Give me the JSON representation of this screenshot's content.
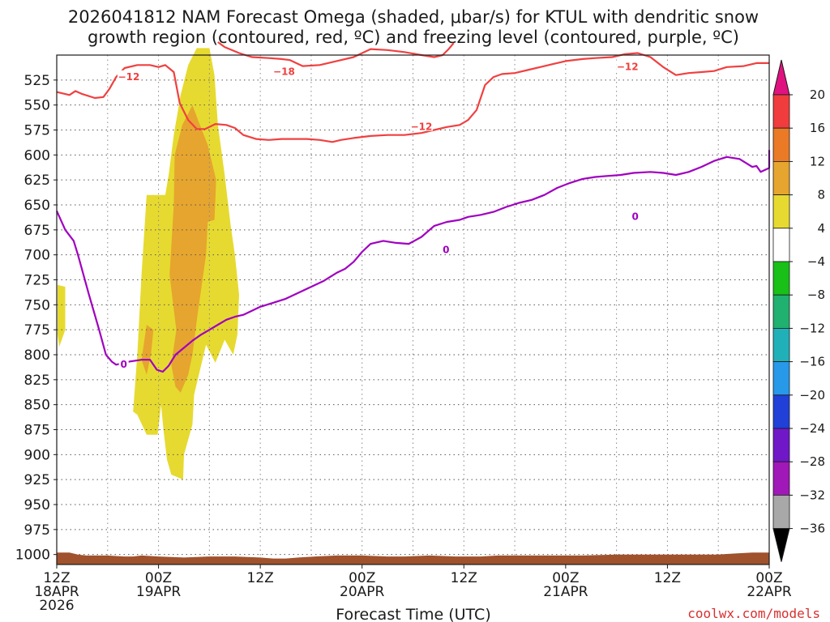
{
  "chart_data": {
    "type": "time-height cross section",
    "title_line1": "2026041812 NAM Forecast Omega (shaded, μbar/s) for KTUL with dendritic snow",
    "title_line2": "growth region (contoured, red, ºC) and freezing level (contoured, purple, ºC)",
    "xlabel": "Forecast Time (UTC)",
    "credit": "coolwx.com/models",
    "x_range_hours": [
      0,
      84
    ],
    "y_range_hpa": [
      500,
      1010
    ],
    "y_ticks": [
      525,
      550,
      575,
      600,
      625,
      650,
      675,
      700,
      725,
      750,
      775,
      800,
      825,
      850,
      875,
      900,
      925,
      950,
      975,
      1000
    ],
    "x_ticks": [
      {
        "hour": 0,
        "line1": "12Z",
        "line2": "18APR",
        "line3": "2026"
      },
      {
        "hour": 12,
        "line1": "00Z",
        "line2": "19APR",
        "line3": ""
      },
      {
        "hour": 24,
        "line1": "12Z",
        "line2": "",
        "line3": ""
      },
      {
        "hour": 36,
        "line1": "00Z",
        "line2": "20APR",
        "line3": ""
      },
      {
        "hour": 48,
        "line1": "12Z",
        "line2": "",
        "line3": ""
      },
      {
        "hour": 60,
        "line1": "00Z",
        "line2": "21APR",
        "line3": ""
      },
      {
        "hour": 72,
        "line1": "12Z",
        "line2": "",
        "line3": ""
      },
      {
        "hour": 84,
        "line1": "00Z",
        "line2": "22APR",
        "line3": ""
      }
    ],
    "colorbar": {
      "ticks": [
        "20",
        "16",
        "12",
        "8",
        "4",
        "−4",
        "−8",
        "−12",
        "−16",
        "−20",
        "−24",
        "−28",
        "−32",
        "−36"
      ],
      "bins": [
        {
          "range": "above 20",
          "color": "#e0127f"
        },
        {
          "range": "16 to 20",
          "color": "#f03c3c"
        },
        {
          "range": "12 to 16",
          "color": "#ea7a26"
        },
        {
          "range": "8 to 12",
          "color": "#e6a52e"
        },
        {
          "range": "4 to 8",
          "color": "#e6da30"
        },
        {
          "range": "-4 to 4",
          "color": "#ffffff"
        },
        {
          "range": "-8 to -4",
          "color": "#18c018"
        },
        {
          "range": "-12 to -8",
          "color": "#20b070"
        },
        {
          "range": "-16 to -12",
          "color": "#20b0b8"
        },
        {
          "range": "-20 to -16",
          "color": "#2898e8"
        },
        {
          "range": "-24 to -20",
          "color": "#2040d8"
        },
        {
          "range": "-28 to -24",
          "color": "#7018c8"
        },
        {
          "range": "-32 to -28",
          "color": "#a018b8"
        },
        {
          "range": "-36 to -32",
          "color": "#a8a8a8"
        },
        {
          "range": "below -36",
          "color": "#000000"
        }
      ]
    },
    "shading_regions": [
      {
        "level": "4 to 8 μbar/s",
        "color": "#e6da30",
        "points": [
          [
            0.1,
            730
          ],
          [
            1,
            732
          ],
          [
            1,
            775
          ],
          [
            0.3,
            792
          ],
          [
            0.1,
            780
          ]
        ]
      },
      {
        "level": "4 to 8 μbar/s",
        "color": "#e6da30",
        "points": [
          [
            9.0,
            857
          ],
          [
            9.5,
            800
          ],
          [
            10.0,
            720
          ],
          [
            10.6,
            640
          ],
          [
            12.8,
            640
          ],
          [
            13.2,
            620
          ],
          [
            13.8,
            580
          ],
          [
            14.6,
            540
          ],
          [
            15.5,
            510
          ],
          [
            16.5,
            493
          ],
          [
            18.0,
            493
          ],
          [
            18.6,
            520
          ],
          [
            19.0,
            570
          ],
          [
            19.8,
            620
          ],
          [
            20.5,
            670
          ],
          [
            21.0,
            700
          ],
          [
            21.5,
            740
          ],
          [
            21.3,
            780
          ],
          [
            20.8,
            800
          ],
          [
            19.8,
            785
          ],
          [
            18.7,
            808
          ],
          [
            17.6,
            790
          ],
          [
            16.2,
            840
          ],
          [
            16.0,
            870
          ],
          [
            15.0,
            900
          ],
          [
            14.9,
            925
          ],
          [
            13.5,
            920
          ],
          [
            13.0,
            905
          ],
          [
            12.6,
            876
          ],
          [
            12.3,
            850
          ],
          [
            11.9,
            880
          ],
          [
            10.6,
            880
          ],
          [
            9.5,
            860
          ]
        ]
      },
      {
        "level": "8 to 12 μbar/s",
        "color": "#e6a52e",
        "points": [
          [
            14.1,
            775
          ],
          [
            13.3,
            720
          ],
          [
            13.8,
            650
          ],
          [
            13.9,
            600
          ],
          [
            14.8,
            570
          ],
          [
            16.0,
            550
          ],
          [
            16.7,
            566
          ],
          [
            17.8,
            590
          ],
          [
            18.8,
            625
          ],
          [
            18.6,
            665
          ],
          [
            17.8,
            667
          ],
          [
            17.6,
            700
          ],
          [
            16.6,
            760
          ],
          [
            16.0,
            800
          ],
          [
            15.5,
            820
          ],
          [
            14.6,
            838
          ],
          [
            14.0,
            832
          ],
          [
            13.5,
            810
          ]
        ]
      },
      {
        "level": "8 to 12 μbar/s",
        "color": "#e6a52e",
        "points": [
          [
            10.0,
            805
          ],
          [
            10.6,
            770
          ],
          [
            11.4,
            775
          ],
          [
            11.1,
            800
          ],
          [
            10.6,
            820
          ]
        ]
      }
    ],
    "contours": [
      {
        "name": "dgz upper",
        "label": "−18",
        "color": "#f04040",
        "points": [
          [
            19.0,
            487
          ],
          [
            19.8,
            492
          ],
          [
            21.5,
            498
          ],
          [
            23.0,
            502
          ],
          [
            25.0,
            503
          ],
          [
            26.5,
            504
          ],
          [
            27.5,
            505
          ],
          [
            29.0,
            511
          ],
          [
            31.0,
            510
          ],
          [
            33.0,
            506
          ],
          [
            35.0,
            502
          ],
          [
            37.0,
            494
          ],
          [
            39.0,
            495
          ],
          [
            41.0,
            497
          ],
          [
            43.0,
            500
          ],
          [
            44.5,
            502
          ],
          [
            45.5,
            500
          ],
          [
            46.2,
            494
          ],
          [
            46.8,
            488
          ]
        ]
      },
      {
        "name": "dgz lower -12 left",
        "label": "−12",
        "color": "#f04040",
        "points": [
          [
            0,
            537
          ],
          [
            1.5,
            540
          ],
          [
            2.2,
            536
          ],
          [
            3.0,
            539
          ],
          [
            4.5,
            543
          ],
          [
            5.5,
            542
          ],
          [
            6.2,
            534
          ],
          [
            7.0,
            522
          ],
          [
            8.0,
            513
          ],
          [
            9.5,
            510
          ],
          [
            11.0,
            510
          ],
          [
            12.0,
            512
          ],
          [
            12.8,
            510
          ],
          [
            13.8,
            517
          ],
          [
            14.5,
            548
          ],
          [
            15.5,
            565
          ],
          [
            16.5,
            574
          ],
          [
            17.5,
            574
          ],
          [
            18.7,
            569
          ],
          [
            20.0,
            570
          ],
          [
            21.0,
            573
          ],
          [
            22.0,
            580
          ],
          [
            23.5,
            584
          ],
          [
            25.0,
            585
          ],
          [
            26.5,
            584
          ],
          [
            28.0,
            584
          ],
          [
            29.5,
            584
          ],
          [
            31.0,
            585
          ],
          [
            32.5,
            587
          ],
          [
            33.5,
            585
          ],
          [
            35.0,
            583
          ],
          [
            37.0,
            581
          ],
          [
            39.0,
            580
          ],
          [
            41.0,
            580
          ],
          [
            43.0,
            578
          ],
          [
            44.5,
            575
          ],
          [
            46.0,
            572
          ],
          [
            47.5,
            570
          ],
          [
            48.5,
            565
          ],
          [
            49.5,
            555
          ],
          [
            50.5,
            530
          ],
          [
            51.5,
            522
          ],
          [
            52.5,
            519
          ],
          [
            54.0,
            518
          ],
          [
            55.5,
            515
          ],
          [
            57.0,
            512
          ],
          [
            58.5,
            509
          ],
          [
            60.0,
            506
          ],
          [
            62.0,
            504
          ],
          [
            63.5,
            503
          ],
          [
            65.5,
            502
          ],
          [
            67.0,
            499
          ],
          [
            68.5,
            498
          ],
          [
            70.0,
            502
          ],
          [
            71.5,
            512
          ],
          [
            73.0,
            520
          ],
          [
            74.5,
            518
          ],
          [
            76.0,
            517
          ],
          [
            77.5,
            516
          ],
          [
            79.0,
            512
          ],
          [
            81.0,
            511
          ],
          [
            82.5,
            508
          ],
          [
            84.0,
            508
          ]
        ]
      },
      {
        "name": "freezing level",
        "label": "0",
        "color": "#a000c0",
        "points": [
          [
            0,
            656
          ],
          [
            1,
            675
          ],
          [
            2,
            686
          ],
          [
            2.5,
            700
          ],
          [
            3.8,
            740
          ],
          [
            5.0,
            775
          ],
          [
            5.8,
            800
          ],
          [
            6.5,
            807
          ],
          [
            7.0,
            810
          ],
          [
            8.5,
            807
          ],
          [
            10.0,
            805
          ],
          [
            11.0,
            805
          ],
          [
            11.8,
            815
          ],
          [
            12.5,
            817
          ],
          [
            13.2,
            811
          ],
          [
            14.0,
            800
          ],
          [
            15.0,
            793
          ],
          [
            16.0,
            786
          ],
          [
            17.0,
            780
          ],
          [
            18.0,
            775
          ],
          [
            19.0,
            770
          ],
          [
            20.0,
            765
          ],
          [
            21.0,
            762
          ],
          [
            22.0,
            760
          ],
          [
            23.0,
            756
          ],
          [
            24.0,
            752
          ],
          [
            25.5,
            748
          ],
          [
            27.0,
            744
          ],
          [
            28.5,
            738
          ],
          [
            30.0,
            732
          ],
          [
            31.5,
            726
          ],
          [
            33.0,
            718
          ],
          [
            34.0,
            714
          ],
          [
            35.0,
            707
          ],
          [
            36.0,
            697
          ],
          [
            37.0,
            689
          ],
          [
            38.5,
            686
          ],
          [
            40.0,
            688
          ],
          [
            41.5,
            689
          ],
          [
            43.0,
            682
          ],
          [
            44.5,
            671
          ],
          [
            46.0,
            667
          ],
          [
            47.5,
            665
          ],
          [
            48.5,
            662
          ],
          [
            50.0,
            660
          ],
          [
            51.5,
            657
          ],
          [
            53.0,
            652
          ],
          [
            54.5,
            648
          ],
          [
            56.0,
            645
          ],
          [
            57.5,
            640
          ],
          [
            59.0,
            633
          ],
          [
            60.5,
            628
          ],
          [
            62.0,
            624
          ],
          [
            63.5,
            622
          ],
          [
            65.0,
            621
          ],
          [
            66.5,
            620
          ],
          [
            68.0,
            618
          ],
          [
            70.0,
            617
          ],
          [
            71.5,
            618
          ],
          [
            73.0,
            620
          ],
          [
            74.5,
            617
          ],
          [
            76.0,
            612
          ],
          [
            77.5,
            606
          ],
          [
            79.0,
            602
          ],
          [
            80.5,
            604
          ],
          [
            82.0,
            612
          ],
          [
            82.5,
            611
          ],
          [
            83.0,
            617
          ],
          [
            84.0,
            613
          ],
          [
            84.0,
            595
          ]
        ]
      }
    ],
    "contour_labels": [
      {
        "text": "−12",
        "hour": 8.5,
        "hpa": 521,
        "color": "#f04040"
      },
      {
        "text": "−18",
        "hour": 26.8,
        "hpa": 516,
        "color": "#f04040"
      },
      {
        "text": "−12",
        "hour": 43.0,
        "hpa": 571,
        "color": "#f04040"
      },
      {
        "text": "−12",
        "hour": 67.3,
        "hpa": 511,
        "color": "#f04040"
      },
      {
        "text": "0",
        "hour": 7.9,
        "hpa": 809,
        "color": "#a000c0"
      },
      {
        "text": "0",
        "hour": 45.9,
        "hpa": 694,
        "color": "#a000c0"
      },
      {
        "text": "0",
        "hour": 68.2,
        "hpa": 661,
        "color": "#a000c0"
      }
    ],
    "terrain_color": "#a0522d",
    "terrain": [
      [
        0,
        998
      ],
      [
        1.5,
        998
      ],
      [
        2.5,
        1000
      ],
      [
        3.5,
        1001
      ],
      [
        6.0,
        1001
      ],
      [
        8.0,
        1002
      ],
      [
        9.0,
        1002
      ],
      [
        10.0,
        1001
      ],
      [
        12.0,
        1002
      ],
      [
        15.0,
        1003
      ],
      [
        18.0,
        1002
      ],
      [
        21.0,
        1002
      ],
      [
        24.0,
        1003
      ],
      [
        25.5,
        1004
      ],
      [
        27.0,
        1004
      ],
      [
        28.5,
        1003
      ],
      [
        30.5,
        1002
      ],
      [
        33.0,
        1001
      ],
      [
        36.0,
        1001
      ],
      [
        39.0,
        1002
      ],
      [
        41.0,
        1002
      ],
      [
        44.0,
        1001
      ],
      [
        47.0,
        1002
      ],
      [
        50.0,
        1002
      ],
      [
        52.0,
        1001
      ],
      [
        54.0,
        1001
      ],
      [
        58.0,
        1001
      ],
      [
        62.0,
        1001
      ],
      [
        66.0,
        1000
      ],
      [
        70.0,
        1000
      ],
      [
        74.0,
        1000
      ],
      [
        78.0,
        1000
      ],
      [
        80.0,
        999
      ],
      [
        82.0,
        998
      ],
      [
        84.0,
        998
      ]
    ]
  }
}
